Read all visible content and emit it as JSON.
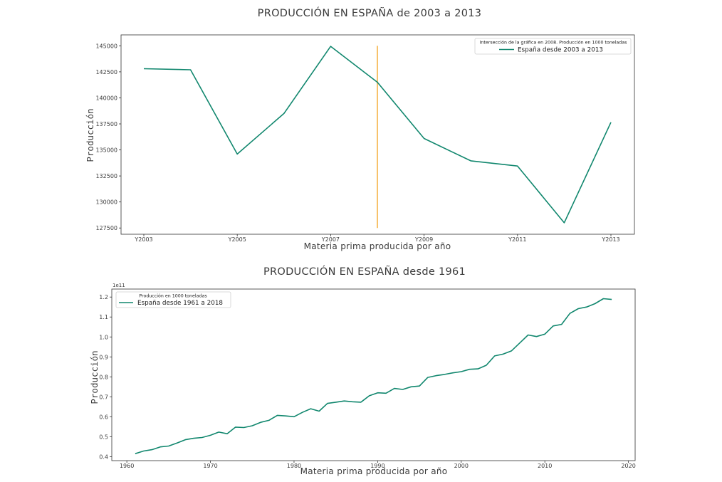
{
  "chart_data": [
    {
      "type": "line",
      "title": "PRODUCCIÓN EN ESPAÑA de 2003 a 2013",
      "xlabel": "Materia prima producida por año",
      "ylabel": "Producción",
      "categories": [
        "Y2003",
        "Y2004",
        "Y2005",
        "Y2006",
        "Y2007",
        "Y2008",
        "Y2009",
        "Y2010",
        "Y2011",
        "Y2012",
        "Y2013"
      ],
      "x_tick_labels": [
        "Y2003",
        "Y2005",
        "Y2007",
        "Y2009",
        "Y2011",
        "Y2013"
      ],
      "y_ticks": [
        127500,
        130000,
        132500,
        135000,
        137500,
        140000,
        142500,
        145000
      ],
      "y_tick_labels": [
        "127500",
        "130000",
        "132500",
        "135000",
        "137500",
        "140000",
        "142500",
        "145000"
      ],
      "ylim": [
        126900,
        146050
      ],
      "grid": false,
      "legend_placement": "top-right",
      "legend_title": "Intersección de la gráfica en 2008. Producción en 1000 toneladas",
      "series": [
        {
          "name": "España desde 2003 a 2013",
          "color": "#11876e",
          "values": [
            142800,
            142700,
            134600,
            138500,
            144950,
            141500,
            136100,
            133950,
            133450,
            128000,
            137650
          ]
        }
      ],
      "annotations": [
        {
          "type": "vertical-line",
          "x": "Y2008",
          "y_range": [
            127500,
            145000
          ],
          "color": "#f7c26b"
        }
      ]
    },
    {
      "type": "line",
      "title": "PRODUCCIÓN EN ESPAÑA desde 1961",
      "xlabel": "Materia prima producida por año",
      "ylabel": "Producción",
      "y_offset_label": "1e11",
      "x_ticks": [
        1960,
        1970,
        1980,
        1990,
        2000,
        2010,
        2020
      ],
      "xlim": [
        1958.2,
        2020.8
      ],
      "y_ticks": [
        0.4,
        0.5,
        0.6,
        0.7,
        0.8,
        0.9,
        1.0,
        1.1,
        1.2
      ],
      "y_tick_labels": [
        "0.4",
        "0.5",
        "0.6",
        "0.7",
        "0.8",
        "0.9",
        "1.0",
        "1.1",
        "1.2"
      ],
      "ylim": [
        0.38,
        1.24
      ],
      "grid": false,
      "legend_placement": "top-left",
      "legend_title": "Producción en 1000 toneladas",
      "series": [
        {
          "name": "España desde 1961 a 2018",
          "color": "#11876e",
          "x": [
            1961,
            1962,
            1963,
            1964,
            1965,
            1966,
            1967,
            1968,
            1969,
            1970,
            1971,
            1972,
            1973,
            1974,
            1975,
            1976,
            1977,
            1978,
            1979,
            1980,
            1981,
            1982,
            1983,
            1984,
            1985,
            1986,
            1987,
            1988,
            1989,
            1990,
            1991,
            1992,
            1993,
            1994,
            1995,
            1996,
            1997,
            1998,
            1999,
            2000,
            2001,
            2002,
            2003,
            2004,
            2005,
            2006,
            2007,
            2008,
            2009,
            2010,
            2011,
            2012,
            2013,
            2014,
            2015,
            2016,
            2017,
            2018
          ],
          "values": [
            0.415,
            0.428,
            0.435,
            0.449,
            0.453,
            0.468,
            0.485,
            0.492,
            0.496,
            0.507,
            0.523,
            0.515,
            0.548,
            0.546,
            0.555,
            0.572,
            0.582,
            0.607,
            0.604,
            0.6,
            0.622,
            0.64,
            0.628,
            0.667,
            0.673,
            0.679,
            0.675,
            0.673,
            0.705,
            0.72,
            0.718,
            0.742,
            0.737,
            0.75,
            0.754,
            0.797,
            0.806,
            0.812,
            0.82,
            0.826,
            0.838,
            0.84,
            0.858,
            0.905,
            0.914,
            0.93,
            0.97,
            1.01,
            1.002,
            1.014,
            1.055,
            1.063,
            1.118,
            1.142,
            1.15,
            1.167,
            1.192,
            1.188
          ]
        }
      ]
    }
  ]
}
